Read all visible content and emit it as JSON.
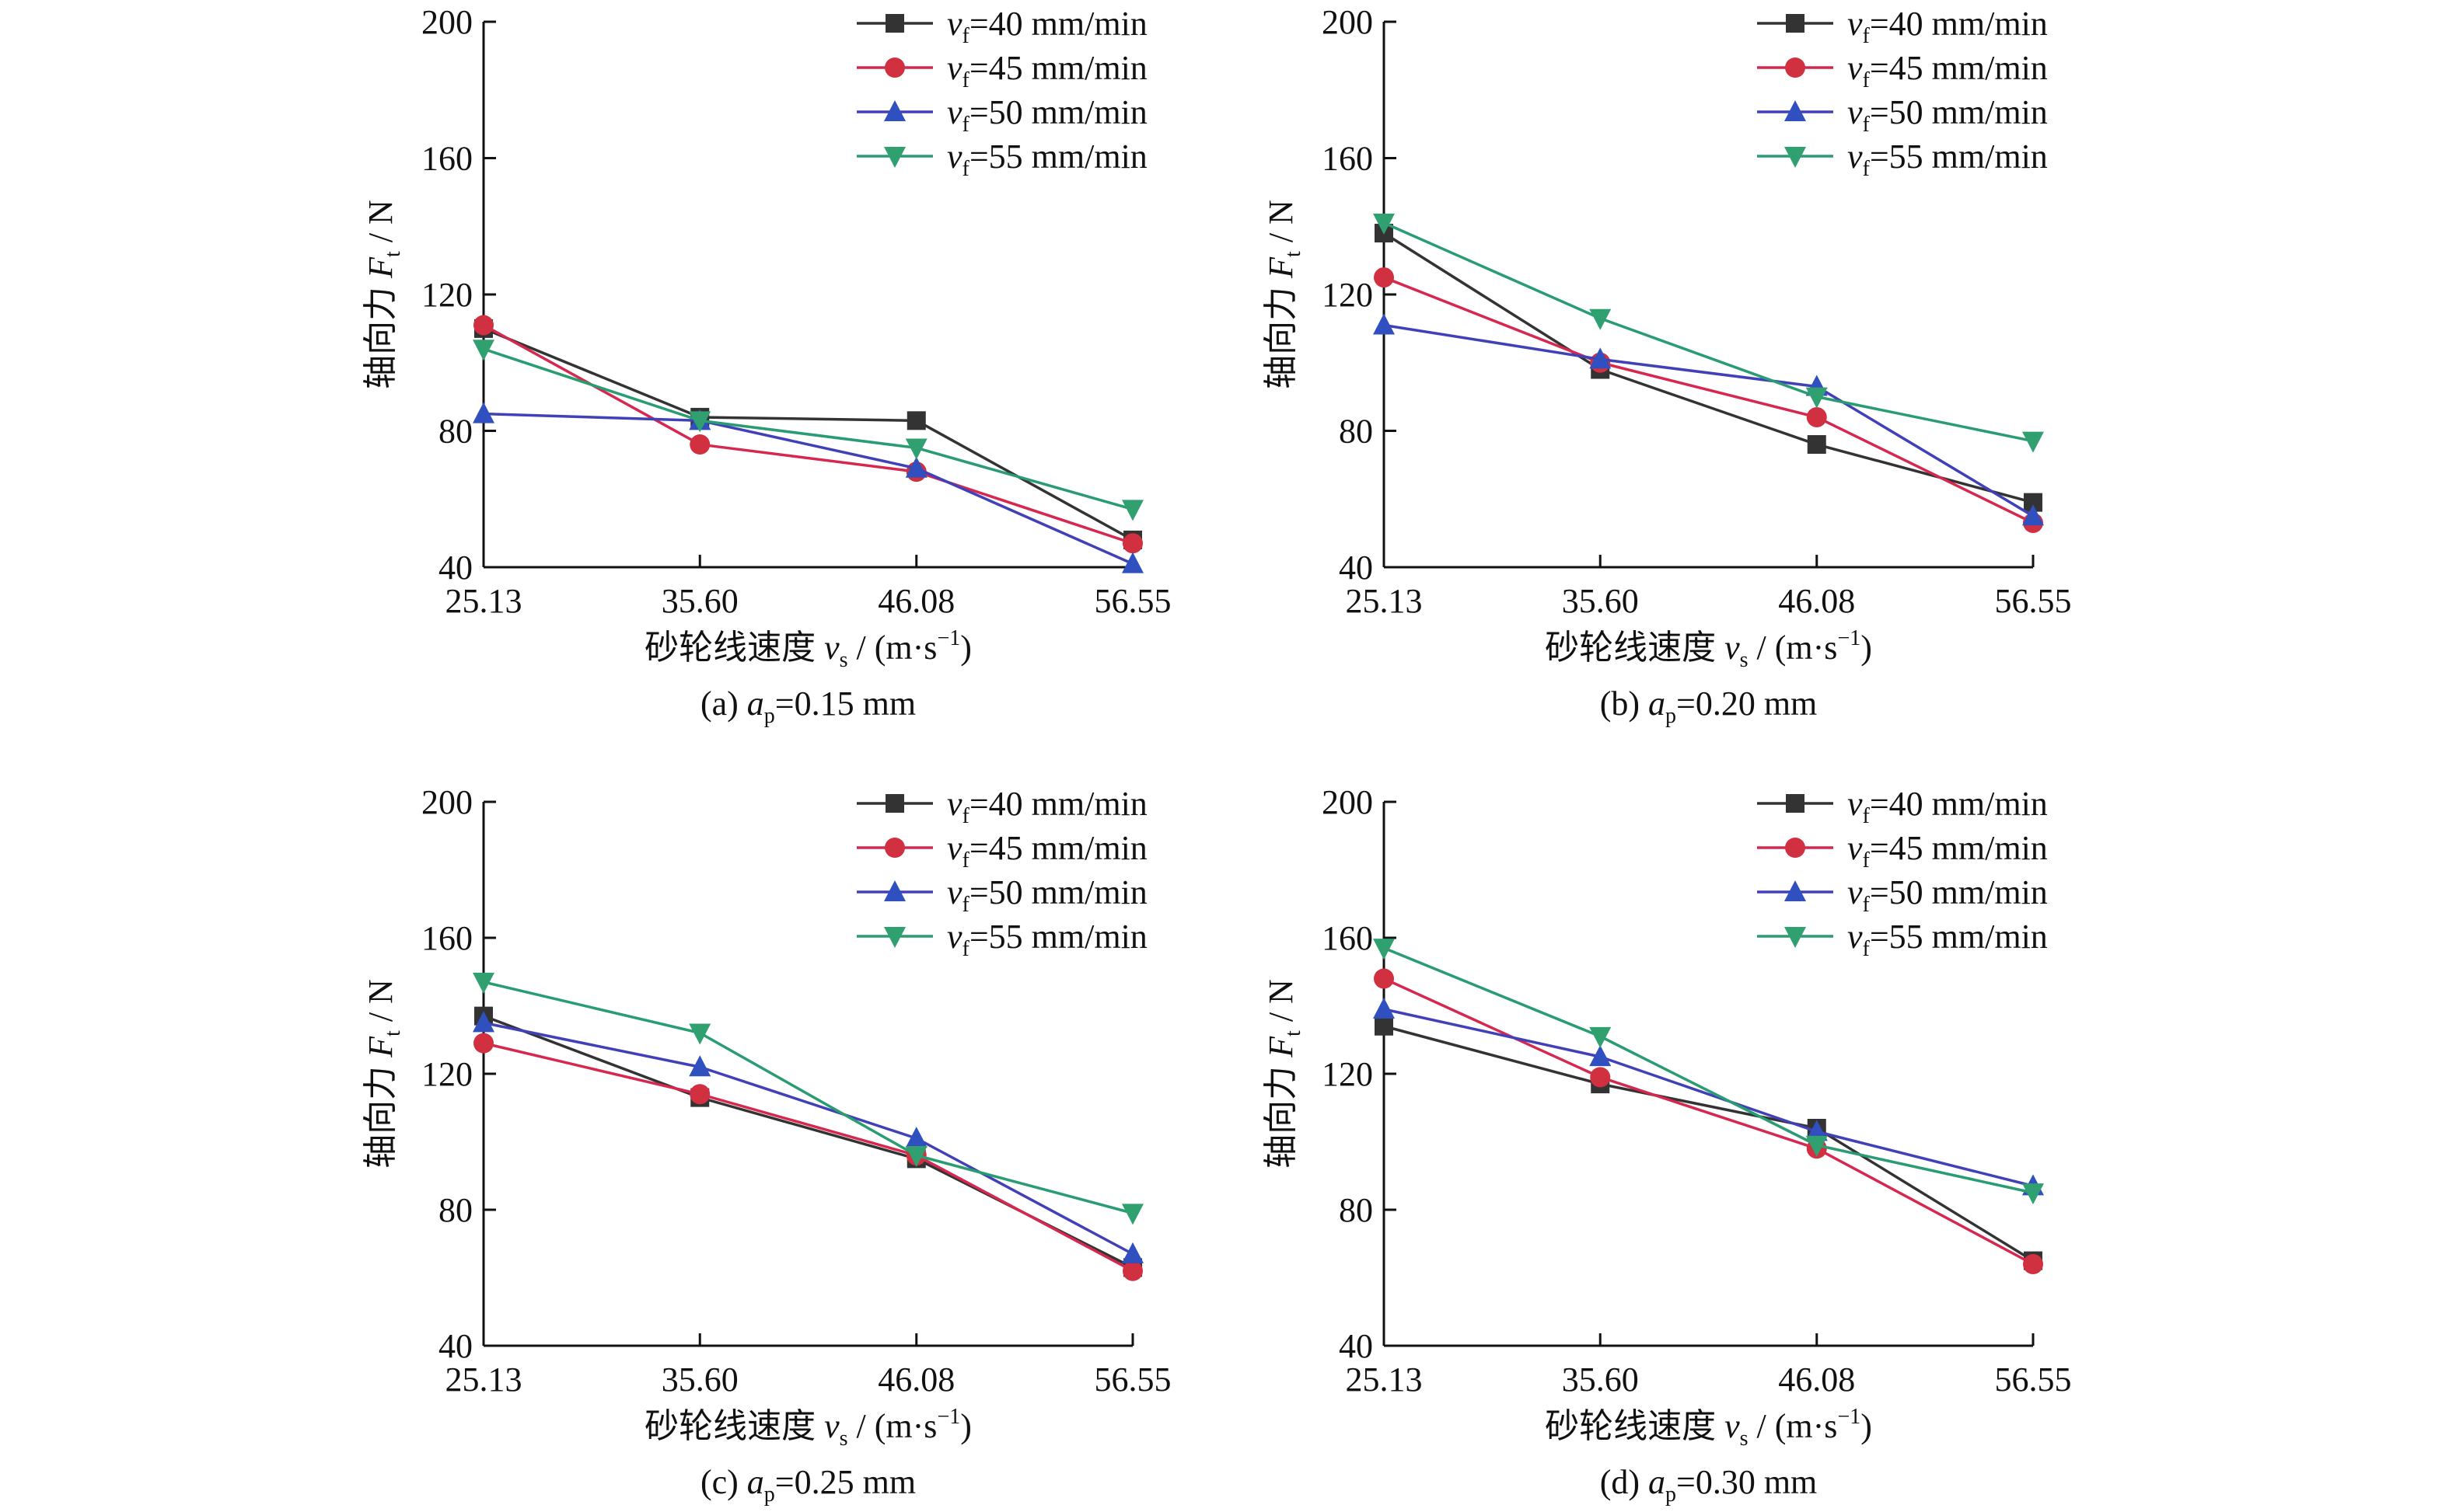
{
  "figure": {
    "legend": [
      {
        "var": "v",
        "sub": "f",
        "rest": "=40 mm/min"
      },
      {
        "var": "v",
        "sub": "f",
        "rest": "=45 mm/min"
      },
      {
        "var": "v",
        "sub": "f",
        "rest": "=50 mm/min"
      },
      {
        "var": "v",
        "sub": "f",
        "rest": "=55 mm/min"
      }
    ],
    "xlabel": {
      "pre": "砂轮线速度 ",
      "var": "v",
      "sub": "s",
      "post": " / (m·s",
      "sup": "−1",
      "end": ")"
    },
    "ylabel": {
      "pre": "轴向力 ",
      "var": "F",
      "sub": "t",
      "post": " / N"
    }
  },
  "colors": {
    "series": [
      "#333333",
      "#d6284f",
      "#4040b8",
      "#2a9c72"
    ],
    "marker_fill": [
      "#333333",
      "#d03040",
      "#3050c0",
      "#30a070"
    ]
  },
  "chart_data": [
    {
      "type": "line",
      "caption": {
        "pre": "(a) ",
        "var": "a",
        "sub": "p",
        "post": "=0.15 mm"
      },
      "x": [
        25.13,
        35.6,
        46.08,
        56.55
      ],
      "xticks": [
        "25.13",
        "35.60",
        "46.08",
        "56.55"
      ],
      "ylim": [
        40,
        200
      ],
      "yticks": [
        40,
        80,
        120,
        160,
        200
      ],
      "series": [
        {
          "name": "vf=40 mm/min",
          "marker": "square",
          "values": [
            110,
            84,
            83,
            48
          ]
        },
        {
          "name": "vf=45 mm/min",
          "marker": "circle",
          "values": [
            111,
            76,
            68,
            47
          ]
        },
        {
          "name": "vf=50 mm/min",
          "marker": "triangle-up",
          "values": [
            85,
            83,
            69,
            41
          ]
        },
        {
          "name": "vf=55 mm/min",
          "marker": "triangle-down",
          "values": [
            104,
            83,
            75,
            57
          ]
        }
      ]
    },
    {
      "type": "line",
      "caption": {
        "pre": "(b) ",
        "var": "a",
        "sub": "p",
        "post": "=0.20 mm"
      },
      "x": [
        25.13,
        35.6,
        46.08,
        56.55
      ],
      "xticks": [
        "25.13",
        "35.60",
        "46.08",
        "56.55"
      ],
      "ylim": [
        40,
        200
      ],
      "yticks": [
        40,
        80,
        120,
        160,
        200
      ],
      "series": [
        {
          "name": "vf=40 mm/min",
          "marker": "square",
          "values": [
            138,
            98,
            76,
            59
          ]
        },
        {
          "name": "vf=45 mm/min",
          "marker": "circle",
          "values": [
            125,
            100,
            84,
            53
          ]
        },
        {
          "name": "vf=50 mm/min",
          "marker": "triangle-up",
          "values": [
            111,
            101,
            93,
            55
          ]
        },
        {
          "name": "vf=55 mm/min",
          "marker": "triangle-down",
          "values": [
            141,
            113,
            90,
            77
          ]
        }
      ]
    },
    {
      "type": "line",
      "caption": {
        "pre": "(c) ",
        "var": "a",
        "sub": "p",
        "post": "=0.25 mm"
      },
      "x": [
        25.13,
        35.6,
        46.08,
        56.55
      ],
      "xticks": [
        "25.13",
        "35.60",
        "46.08",
        "56.55"
      ],
      "ylim": [
        40,
        200
      ],
      "yticks": [
        40,
        80,
        120,
        160,
        200
      ],
      "series": [
        {
          "name": "vf=40 mm/min",
          "marker": "square",
          "values": [
            137,
            113,
            95,
            63
          ]
        },
        {
          "name": "vf=45 mm/min",
          "marker": "circle",
          "values": [
            129,
            114,
            96,
            62
          ]
        },
        {
          "name": "vf=50 mm/min",
          "marker": "triangle-up",
          "values": [
            135,
            122,
            101,
            67
          ]
        },
        {
          "name": "vf=55 mm/min",
          "marker": "triangle-down",
          "values": [
            147,
            132,
            96,
            79
          ]
        }
      ]
    },
    {
      "type": "line",
      "caption": {
        "pre": "(d) ",
        "var": "a",
        "sub": "p",
        "post": "=0.30 mm"
      },
      "x": [
        25.13,
        35.6,
        46.08,
        56.55
      ],
      "xticks": [
        "25.13",
        "35.60",
        "46.08",
        "56.55"
      ],
      "ylim": [
        40,
        200
      ],
      "yticks": [
        40,
        80,
        120,
        160,
        200
      ],
      "series": [
        {
          "name": "vf=40 mm/min",
          "marker": "square",
          "values": [
            134,
            117,
            104,
            65
          ]
        },
        {
          "name": "vf=45 mm/min",
          "marker": "circle",
          "values": [
            148,
            119,
            98,
            64
          ]
        },
        {
          "name": "vf=50 mm/min",
          "marker": "triangle-up",
          "values": [
            139,
            125,
            103,
            87
          ]
        },
        {
          "name": "vf=55 mm/min",
          "marker": "triangle-down",
          "values": [
            157,
            131,
            99,
            85
          ]
        }
      ]
    }
  ]
}
